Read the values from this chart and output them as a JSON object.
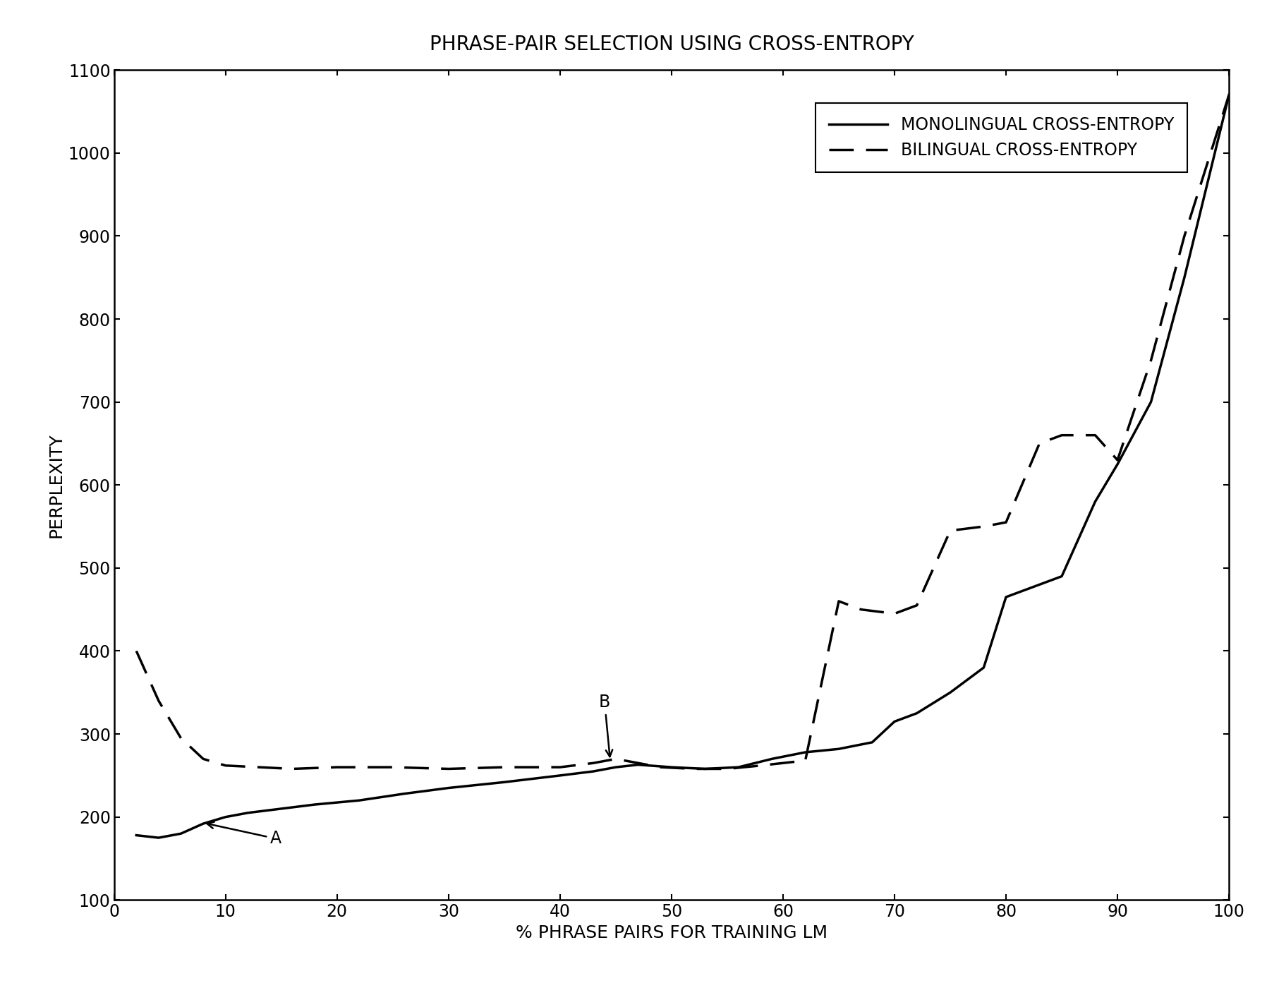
{
  "title": "PHRASE-PAIR SELECTION USING CROSS-ENTROPY",
  "xlabel": "% PHRASE PAIRS FOR TRAINING LM",
  "ylabel": "PERPLEXITY",
  "xlim": [
    0,
    100
  ],
  "ylim": [
    100,
    1100
  ],
  "xticks": [
    0,
    10,
    20,
    30,
    40,
    50,
    60,
    70,
    80,
    90,
    100
  ],
  "yticks": [
    100,
    200,
    300,
    400,
    500,
    600,
    700,
    800,
    900,
    1000,
    1100
  ],
  "mono_x": [
    2,
    4,
    6,
    8,
    10,
    12,
    15,
    18,
    22,
    26,
    30,
    35,
    40,
    43,
    45,
    47,
    50,
    53,
    56,
    59,
    62,
    65,
    68,
    70,
    72,
    75,
    78,
    80,
    83,
    85,
    88,
    90,
    93,
    96,
    100
  ],
  "mono_y": [
    178,
    175,
    180,
    192,
    200,
    205,
    210,
    215,
    220,
    228,
    235,
    242,
    250,
    255,
    260,
    263,
    260,
    258,
    260,
    270,
    278,
    282,
    290,
    315,
    325,
    350,
    380,
    465,
    480,
    490,
    580,
    625,
    700,
    850,
    1070
  ],
  "bili_x": [
    2,
    4,
    6,
    8,
    10,
    13,
    16,
    20,
    25,
    30,
    35,
    40,
    43,
    45,
    47,
    49,
    52,
    55,
    58,
    62,
    65,
    67,
    70,
    72,
    75,
    78,
    80,
    83,
    85,
    88,
    90,
    93,
    96,
    100
  ],
  "bili_y": [
    400,
    340,
    295,
    270,
    262,
    260,
    258,
    260,
    260,
    258,
    260,
    260,
    265,
    270,
    265,
    260,
    258,
    258,
    262,
    268,
    460,
    450,
    445,
    455,
    545,
    550,
    555,
    650,
    660,
    660,
    630,
    750,
    900,
    1070
  ],
  "legend_mono": "MONOLINGUAL CROSS-ENTROPY",
  "legend_bili": "BILINGUAL CROSS-ENTROPY",
  "bg_color": "#ffffff",
  "line_color": "#000000",
  "title_fontsize": 20,
  "label_fontsize": 18,
  "tick_fontsize": 17,
  "legend_fontsize": 17
}
